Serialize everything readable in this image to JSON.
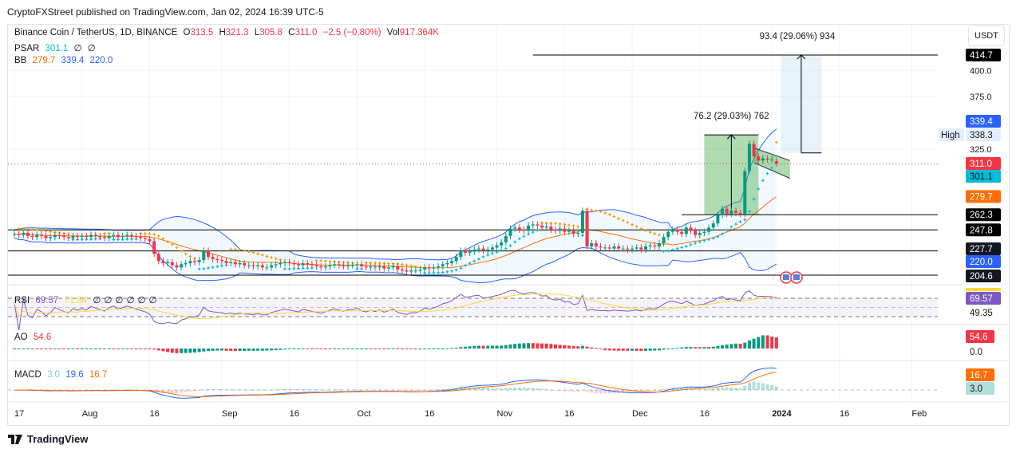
{
  "publish_line": "CryptoFXStreet published on TradingView.com, Jan 02, 2024 16:39 UTC-5",
  "header": {
    "symbol": "Binance Coin / TetherUS, 1D, BINANCE",
    "o_label": "O",
    "o": "313.5",
    "h_label": "H",
    "h": "321.3",
    "l_label": "L",
    "l": "305.8",
    "c_label": "C",
    "c": "311.0",
    "change": "−2.5 (−0.80%)",
    "vol_label": "Vol",
    "vol": "917.364K"
  },
  "indicators": {
    "psar": {
      "label": "PSAR",
      "value": "301.1",
      "extra": [
        "∅",
        "∅"
      ]
    },
    "bb": {
      "label": "BB",
      "basis": "279.7",
      "upper": "339.4",
      "lower": "220.0"
    },
    "rsi": {
      "label": "RSI",
      "value": "69.57",
      "ma": "71.84",
      "extra": [
        "∅",
        "∅",
        "∅",
        "∅",
        "∅",
        "∅"
      ]
    },
    "ao": {
      "label": "AO",
      "value": "54.6"
    },
    "macd": {
      "label": "MACD",
      "hist": "3.0",
      "macd": "19.6",
      "signal": "16.7"
    }
  },
  "currency_button": "USDT",
  "logo_text": "TradingView",
  "colors": {
    "up": "#089981",
    "down": "#f23645",
    "bb_band": "#2962ff",
    "bb_basis": "#ff6d00",
    "psar": "#00bcd4",
    "rsi": "#7e57c2",
    "rsi_ma": "#fdd835",
    "macd": "#2962ff",
    "signal": "#ff6d00"
  },
  "chart_data": {
    "type": "candlestick",
    "interval": "1D",
    "start_date": "2023-07-17",
    "end_date": "2024-01-02",
    "closes": [
      244,
      243,
      245,
      242,
      241,
      243,
      242,
      240,
      241,
      243,
      242,
      241,
      240,
      242,
      241,
      242,
      241,
      243,
      242,
      241,
      240,
      242,
      243,
      241,
      242,
      243,
      242,
      241,
      240,
      239,
      237,
      225,
      218,
      216,
      217,
      214,
      212,
      215,
      216,
      218,
      217,
      219,
      228,
      222,
      220,
      219,
      218,
      216,
      217,
      215,
      216,
      214,
      214,
      213,
      214,
      212,
      212,
      214,
      215,
      216,
      217,
      216,
      215,
      214,
      216,
      215,
      214,
      213,
      212,
      213,
      214,
      215,
      214,
      213,
      214,
      214,
      215,
      213,
      212,
      213,
      212,
      213,
      211,
      212,
      213,
      210,
      209,
      208,
      209,
      209,
      210,
      212,
      211,
      212,
      213,
      215,
      216,
      218,
      222,
      228,
      226,
      227,
      229,
      230,
      228,
      229,
      231,
      233,
      236,
      242,
      249,
      250,
      248,
      247,
      252,
      253,
      252,
      250,
      251,
      248,
      247,
      249,
      246,
      247,
      244,
      245,
      266,
      232,
      235,
      232,
      231,
      231,
      230,
      232,
      230,
      230,
      229,
      230,
      231,
      229,
      232,
      233,
      232,
      235,
      241,
      246,
      248,
      246,
      244,
      250,
      247,
      243,
      245,
      246,
      250,
      254,
      262,
      268,
      263,
      266,
      264,
      263,
      304,
      330,
      318,
      314,
      316,
      315,
      315,
      311
    ],
    "last_open": 313.5,
    "price_axis": {
      "unit": "USDT",
      "ticks": [
        "400.0",
        "375.0",
        "325.0"
      ],
      "range": [
        195,
        425
      ]
    },
    "time_axis": {
      "ticks": [
        {
          "label": "17",
          "date": "2023-07-17"
        },
        {
          "label": "Aug",
          "date": "2023-08-01"
        },
        {
          "label": "16",
          "date": "2023-08-16"
        },
        {
          "label": "Sep",
          "date": "2023-09-01"
        },
        {
          "label": "16",
          "date": "2023-09-16"
        },
        {
          "label": "Oct",
          "date": "2023-10-01"
        },
        {
          "label": "16",
          "date": "2023-10-16"
        },
        {
          "label": "Nov",
          "date": "2023-11-01"
        },
        {
          "label": "16",
          "date": "2023-11-16"
        },
        {
          "label": "Dec",
          "date": "2023-12-01"
        },
        {
          "label": "16",
          "date": "2023-12-16"
        },
        {
          "label": "2024",
          "date": "2024-01-01",
          "bold": true
        },
        {
          "label": "16",
          "date": "2024-01-16"
        },
        {
          "label": "Feb",
          "date": "2024-02-01"
        }
      ]
    },
    "horizontal_levels": [
      {
        "price": 414.7,
        "label": "414.7",
        "from_date": "2023-11-09"
      },
      {
        "price": 262.3,
        "label": "262.3",
        "from_date": "2023-12-12"
      },
      {
        "price": 247.8,
        "label": "247.8"
      },
      {
        "price": 227.7,
        "label": "227.7"
      },
      {
        "price": 204.6,
        "label": "204.6"
      }
    ],
    "price_labels": [
      {
        "price": 414.7,
        "label": "414.7",
        "bg": "#000000",
        "fg": "#ffffff"
      },
      {
        "price": 339.4,
        "label": "339.4",
        "bg": "#2962ff",
        "fg": "#ffffff"
      },
      {
        "price": 338.3,
        "label": "338.3",
        "bg": "#e3effd",
        "fg": "#131722",
        "tag": "High"
      },
      {
        "price": 311.0,
        "label": "311.0",
        "bg": "#f23645",
        "fg": "#ffffff"
      },
      {
        "price": 301.1,
        "label": "301.1",
        "bg": "#00bcd4",
        "fg": "#131722"
      },
      {
        "price": 279.7,
        "label": "279.7",
        "bg": "#ff6d00",
        "fg": "#ffffff"
      },
      {
        "price": 262.3,
        "label": "262.3",
        "bg": "#000000",
        "fg": "#ffffff"
      },
      {
        "price": 247.8,
        "label": "247.8",
        "bg": "#000000",
        "fg": "#ffffff"
      },
      {
        "price": 227.7,
        "label": "227.7",
        "bg": "#131722",
        "fg": "#ffffff"
      },
      {
        "price": 220.0,
        "label": "220.0",
        "bg": "#2962ff",
        "fg": "#ffffff"
      },
      {
        "price": 204.6,
        "label": "204.6",
        "bg": "#131722",
        "fg": "#ffffff"
      }
    ],
    "pane_labels": {
      "rsi": [
        "69.57",
        "49.35"
      ],
      "ao": [
        "54.6",
        "0.0"
      ],
      "macd": [
        "16.7",
        "3.0"
      ]
    },
    "measure_flagpole": {
      "label": "76.2 (29.03%) 762",
      "from_date": "2023-12-17",
      "to_date": "2023-12-29",
      "low": 262.3,
      "high": 338.5
    },
    "measure_target": {
      "label": "93.4 (29.06%) 934",
      "from_date": "2024-01-03",
      "to_date": "2024-01-12",
      "low": 321.3,
      "high": 414.7
    },
    "flag_channel": {
      "from_date": "2023-12-28",
      "to_date": "2024-01-05",
      "upper": [
        326,
        314
      ],
      "lower": [
        312,
        297
      ]
    }
  }
}
